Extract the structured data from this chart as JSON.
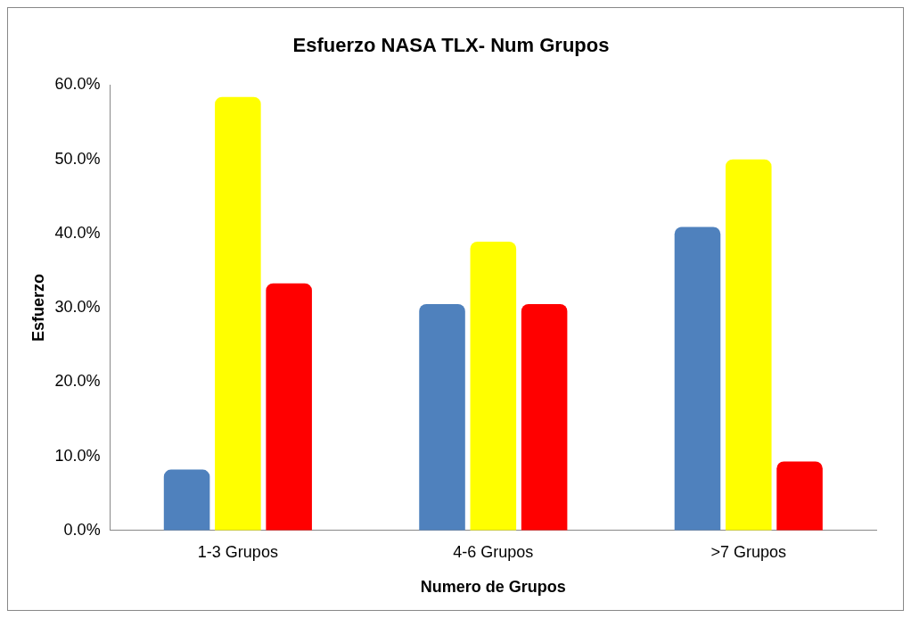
{
  "chart_data": {
    "type": "bar",
    "title": "Esfuerzo NASA TLX- Num Grupos",
    "xlabel": "Numero de Grupos",
    "ylabel": "Esfuerzo",
    "categories": [
      "1-3 Grupos",
      "4-6 Grupos",
      ">7 Grupos"
    ],
    "series": [
      {
        "color": "#4f81bd",
        "values": [
          8.2,
          30.5,
          40.9
        ]
      },
      {
        "color": "#ffff00",
        "values": [
          58.4,
          38.9,
          50.0
        ]
      },
      {
        "color": "#ff0000",
        "values": [
          33.3,
          30.5,
          9.3
        ]
      }
    ],
    "ylim": [
      0,
      60
    ],
    "yticks": [
      {
        "value": 0,
        "label": "0.0%"
      },
      {
        "value": 10,
        "label": "10.0%"
      },
      {
        "value": 20,
        "label": "20.0%"
      },
      {
        "value": 30,
        "label": "30.0%"
      },
      {
        "value": 40,
        "label": "40.0%"
      },
      {
        "value": 50,
        "label": "50.0%"
      },
      {
        "value": 60,
        "label": "60.0%"
      }
    ],
    "grid": false,
    "legend": false
  }
}
